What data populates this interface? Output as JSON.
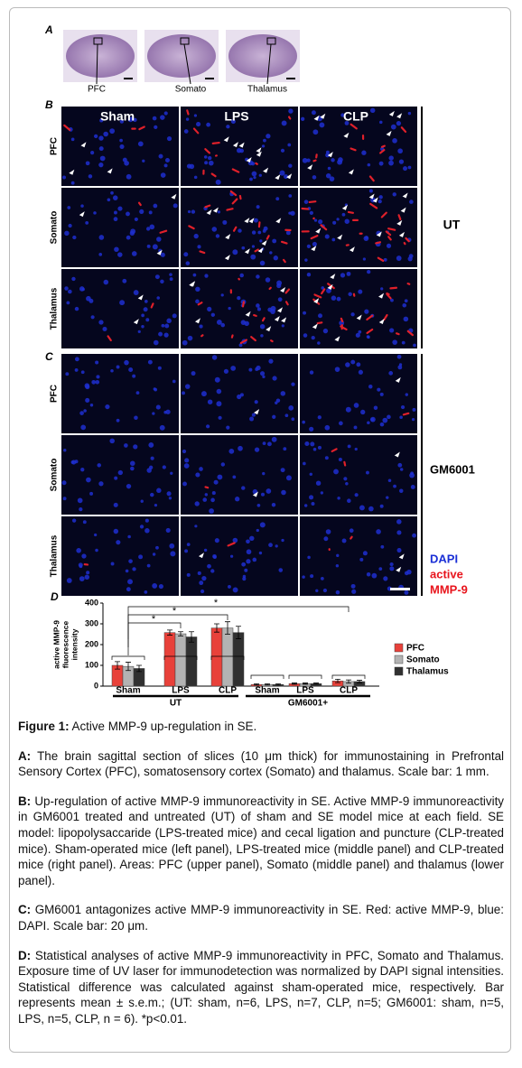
{
  "figure": {
    "panel_a": {
      "label": "A",
      "regions": [
        "PFC",
        "Somato",
        "Thalamus"
      ]
    },
    "panel_b": {
      "label": "B",
      "columns": [
        "Sham",
        "LPS",
        "CLP"
      ],
      "rows": [
        "PFC",
        "Somato",
        "Thalamus"
      ],
      "group": "UT"
    },
    "panel_c": {
      "label": "C",
      "rows": [
        "PFC",
        "Somato",
        "Thalamus"
      ],
      "group": "GM6001",
      "stains": [
        "DAPI",
        "active",
        "MMP-9"
      ]
    },
    "panel_d": {
      "label": "D"
    }
  },
  "chart_data": {
    "type": "bar",
    "ylabel": [
      "active MMP-9",
      "fluorescence",
      "intensity"
    ],
    "categories": [
      "Sham",
      "LPS",
      "CLP",
      "Sham",
      "LPS",
      "CLP"
    ],
    "groups": [
      "UT",
      "GM6001+"
    ],
    "series": [
      {
        "name": "PFC",
        "color": "#e8413a",
        "values": [
          100,
          258,
          280,
          8,
          12,
          25
        ],
        "errors": [
          18,
          12,
          20,
          3,
          3,
          8
        ]
      },
      {
        "name": "Somato",
        "color": "#b3b3b3",
        "values": [
          95,
          252,
          280,
          8,
          12,
          22
        ],
        "errors": [
          20,
          10,
          30,
          3,
          3,
          8
        ]
      },
      {
        "name": "Thalamus",
        "color": "#303030",
        "values": [
          85,
          237,
          258,
          8,
          12,
          22
        ],
        "errors": [
          15,
          25,
          30,
          3,
          3,
          6
        ]
      }
    ],
    "ylim": [
      0,
      400
    ],
    "yticks": [
      0,
      100,
      200,
      300,
      400
    ],
    "significance": [
      "*",
      "*",
      "*"
    ]
  },
  "caption": {
    "title": {
      "label": "Figure 1:",
      "text": "Active MMP-9 up-regulation in SE."
    },
    "paragraphs": [
      {
        "label": "A:",
        "text": "The brain sagittal section of slices (10 μm thick) for immunostaining in Prefrontal Sensory Cortex (PFC), somatosensory cortex (Somato) and thalamus. Scale bar: 1 mm."
      },
      {
        "label": "B:",
        "text": "Up-regulation of active MMP-9 immunoreactivity in SE. Active MMP-9 immunoreactivity in GM6001 treated and untreated (UT) of sham and SE model mice at each field. SE model: lipopolysaccaride (LPS-treated mice) and cecal ligation and puncture (CLP-treated mice). Sham-operated mice (left panel), LPS-treated mice (middle panel) and CLP-treated mice (right panel). Areas: PFC (upper panel), Somato (middle panel) and thalamus (lower panel)."
      },
      {
        "label": "C:",
        "text": "GM6001 antagonizes active MMP-9 immunoreactivity in SE. Red: active MMP-9, blue: DAPI. Scale bar: 20 μm."
      },
      {
        "label": "D:",
        "text": "Statistical analyses of active MMP-9 immunoreactivity in PFC, Somato and Thalamus. Exposure time of UV laser for immunodetection was normalized by DAPI signal intensities. Statistical difference was calculated against sham-operated mice, respectively. Bar represents mean ± s.e.m.; (UT: sham, n=6, LPS, n=7, CLP, n=5; GM6001: sham, n=5, LPS, n=5, CLP, n = 6). *p<0.01."
      }
    ]
  }
}
